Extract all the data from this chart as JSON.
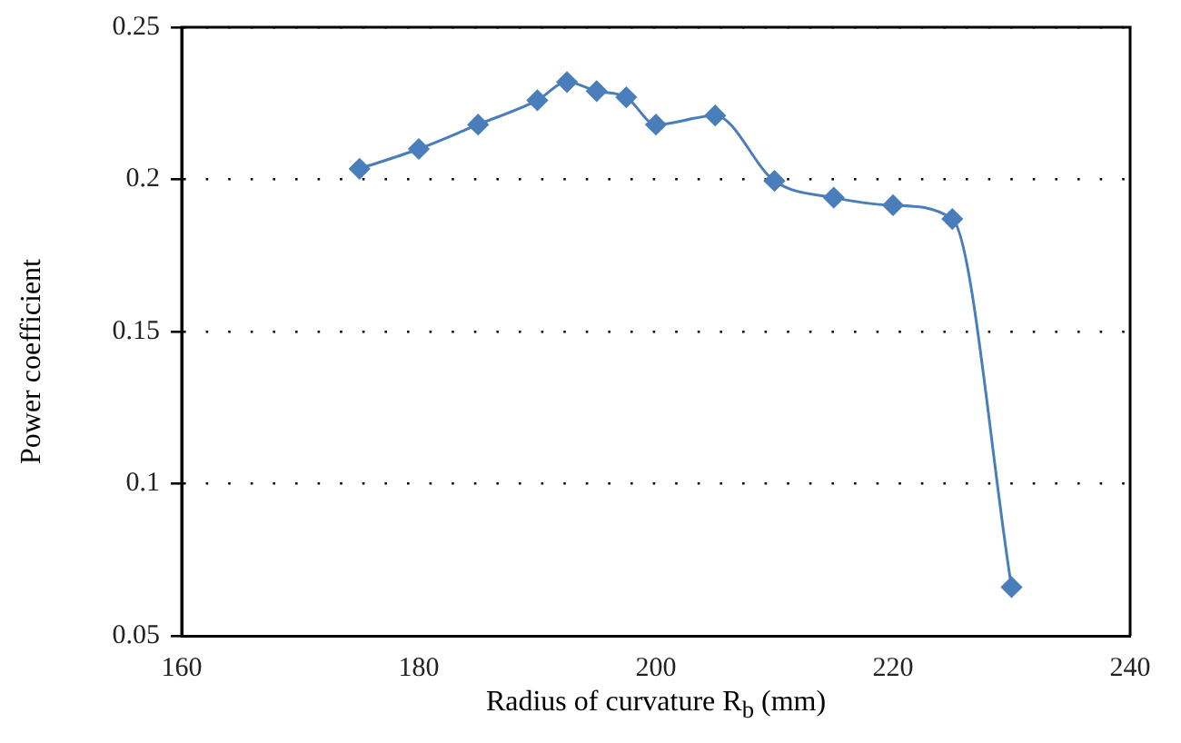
{
  "chart_data": {
    "type": "line",
    "xlabel": "Radius of curvature R$_{b}$ (mm)",
    "ylabel": "Power coefficient",
    "x": [
      175,
      180,
      185,
      190,
      192.5,
      195,
      197.5,
      200,
      205,
      210,
      215,
      220,
      225,
      230
    ],
    "series": [
      {
        "color": "#4a7ebb",
        "values": [
          0.2035,
          0.21,
          0.218,
          0.226,
          0.232,
          0.229,
          0.227,
          0.218,
          0.221,
          0.1995,
          0.194,
          0.1915,
          0.187,
          0.066
        ]
      }
    ],
    "xlim": [
      160,
      240
    ],
    "xticks": [
      160,
      180,
      200,
      220,
      240
    ],
    "ylim": [
      0.05,
      0.25
    ],
    "yticks": [
      0.05,
      0.1,
      0.15,
      0.2,
      0.25
    ],
    "grid": "y",
    "marker": "diamond",
    "line_style": "solid",
    "legend": false
  }
}
